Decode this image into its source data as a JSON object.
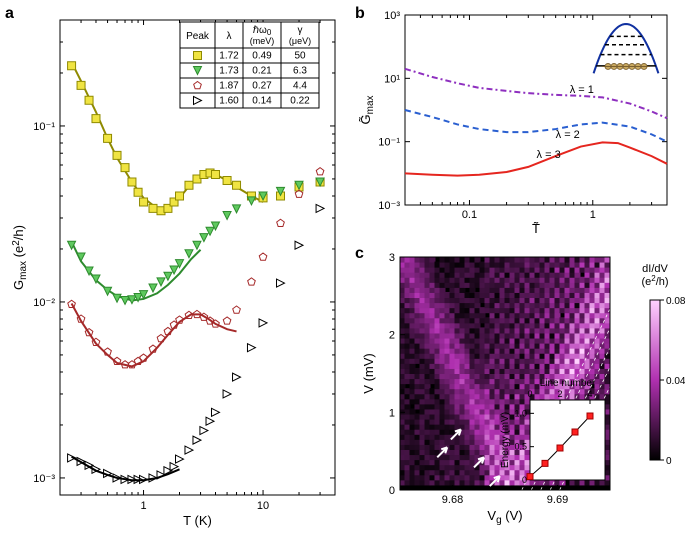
{
  "panel_a": {
    "label": "a",
    "type": "scatter-log-log",
    "xlabel": "T (K)",
    "ylabel": "G_max (e²/h)",
    "xlim": [
      0.2,
      40
    ],
    "ylim": [
      0.0008,
      0.4
    ],
    "xticks": [
      1,
      10
    ],
    "yticks": [
      0.001,
      0.01,
      0.1
    ],
    "xtick_labels": [
      "1",
      "10"
    ],
    "ytick_labels": [
      "10⁻³",
      "10⁻²",
      "10⁻¹"
    ],
    "background_color": "#ffffff",
    "series": [
      {
        "name": "yellow-squares",
        "marker": "square",
        "fill_color": "#f0e442",
        "line_color": "#8f8a00",
        "data": [
          [
            0.25,
            0.22
          ],
          [
            0.3,
            0.17
          ],
          [
            0.35,
            0.14
          ],
          [
            0.4,
            0.11
          ],
          [
            0.5,
            0.085
          ],
          [
            0.6,
            0.068
          ],
          [
            0.7,
            0.058
          ],
          [
            0.8,
            0.048
          ],
          [
            0.9,
            0.042
          ],
          [
            1.0,
            0.037
          ],
          [
            1.2,
            0.034
          ],
          [
            1.4,
            0.033
          ],
          [
            1.6,
            0.034
          ],
          [
            1.8,
            0.037
          ],
          [
            2.0,
            0.04
          ],
          [
            2.4,
            0.046
          ],
          [
            2.8,
            0.05
          ],
          [
            3.2,
            0.053
          ],
          [
            3.6,
            0.054
          ],
          [
            4.0,
            0.053
          ],
          [
            5.0,
            0.049
          ],
          [
            6.0,
            0.046
          ],
          [
            8.0,
            0.04
          ],
          [
            10,
            0.039
          ],
          [
            14,
            0.04
          ],
          [
            20,
            0.045
          ],
          [
            30,
            0.048
          ]
        ],
        "fit_line": [
          [
            0.25,
            0.23
          ],
          [
            0.3,
            0.18
          ],
          [
            0.4,
            0.12
          ],
          [
            0.5,
            0.085
          ],
          [
            0.6,
            0.066
          ],
          [
            0.8,
            0.048
          ],
          [
            1.0,
            0.039
          ],
          [
            1.3,
            0.034
          ],
          [
            1.6,
            0.034
          ],
          [
            2.0,
            0.039
          ],
          [
            2.5,
            0.047
          ],
          [
            3.0,
            0.052
          ],
          [
            3.5,
            0.054
          ],
          [
            4.0,
            0.053
          ],
          [
            5.0,
            0.049
          ],
          [
            6.0,
            0.045
          ],
          [
            8.0,
            0.04
          ],
          [
            10,
            0.037
          ]
        ]
      },
      {
        "name": "green-triangles",
        "marker": "triangle-down",
        "fill_color": "#5fc95f",
        "line_color": "#2e8b2e",
        "data": [
          [
            0.25,
            0.021
          ],
          [
            0.3,
            0.018
          ],
          [
            0.35,
            0.015
          ],
          [
            0.4,
            0.0135
          ],
          [
            0.5,
            0.0115
          ],
          [
            0.6,
            0.0105
          ],
          [
            0.7,
            0.0102
          ],
          [
            0.8,
            0.0103
          ],
          [
            0.9,
            0.0106
          ],
          [
            1.0,
            0.011
          ],
          [
            1.2,
            0.012
          ],
          [
            1.4,
            0.013
          ],
          [
            1.6,
            0.014
          ],
          [
            1.8,
            0.0152
          ],
          [
            2.0,
            0.0165
          ],
          [
            2.4,
            0.0188
          ],
          [
            2.8,
            0.021
          ],
          [
            3.2,
            0.0232
          ],
          [
            3.6,
            0.0252
          ],
          [
            4.0,
            0.027
          ],
          [
            5.0,
            0.031
          ],
          [
            6.0,
            0.0338
          ],
          [
            8.0,
            0.0375
          ],
          [
            10,
            0.04
          ],
          [
            14,
            0.0425
          ],
          [
            20,
            0.046
          ],
          [
            30,
            0.048
          ]
        ],
        "fit_line": [
          [
            0.25,
            0.022
          ],
          [
            0.3,
            0.017
          ],
          [
            0.4,
            0.0133
          ],
          [
            0.5,
            0.0117
          ],
          [
            0.6,
            0.0108
          ],
          [
            0.8,
            0.0102
          ],
          [
            1.0,
            0.0104
          ],
          [
            1.3,
            0.0112
          ],
          [
            1.6,
            0.0125
          ],
          [
            2.0,
            0.0145
          ],
          [
            2.5,
            0.0175
          ],
          [
            3.0,
            0.0198
          ]
        ]
      },
      {
        "name": "red-pentagons",
        "marker": "pentagon",
        "fill_color": "none",
        "line_color": "#a52929",
        "data": [
          [
            0.25,
            0.0097
          ],
          [
            0.3,
            0.008
          ],
          [
            0.35,
            0.0067
          ],
          [
            0.4,
            0.0059
          ],
          [
            0.5,
            0.0052
          ],
          [
            0.6,
            0.0046
          ],
          [
            0.7,
            0.0044
          ],
          [
            0.8,
            0.0044
          ],
          [
            0.9,
            0.0046
          ],
          [
            1.0,
            0.0048
          ],
          [
            1.2,
            0.0054
          ],
          [
            1.4,
            0.0062
          ],
          [
            1.6,
            0.0068
          ],
          [
            1.8,
            0.0074
          ],
          [
            2.0,
            0.0079
          ],
          [
            2.4,
            0.0084
          ],
          [
            2.8,
            0.0085
          ],
          [
            3.2,
            0.0082
          ],
          [
            3.6,
            0.0078
          ],
          [
            4.0,
            0.0075
          ],
          [
            5.0,
            0.0078
          ],
          [
            6.0,
            0.009
          ],
          [
            8.0,
            0.013
          ],
          [
            10,
            0.018
          ],
          [
            14,
            0.028
          ],
          [
            20,
            0.041
          ],
          [
            30,
            0.055
          ]
        ],
        "fit_line": [
          [
            0.25,
            0.0098
          ],
          [
            0.3,
            0.0078
          ],
          [
            0.4,
            0.0058
          ],
          [
            0.5,
            0.005
          ],
          [
            0.6,
            0.0045
          ],
          [
            0.8,
            0.0043
          ],
          [
            1.0,
            0.0046
          ],
          [
            1.3,
            0.0055
          ],
          [
            1.6,
            0.0065
          ],
          [
            2.0,
            0.0077
          ],
          [
            2.5,
            0.0085
          ],
          [
            3.0,
            0.0085
          ],
          [
            3.5,
            0.008
          ],
          [
            4.0,
            0.0075
          ],
          [
            5.0,
            0.007
          ],
          [
            6.0,
            0.0068
          ]
        ]
      },
      {
        "name": "black-triangles",
        "marker": "triangle-right",
        "fill_color": "none",
        "line_color": "#000000",
        "data": [
          [
            0.25,
            0.0013
          ],
          [
            0.3,
            0.00124
          ],
          [
            0.35,
            0.00118
          ],
          [
            0.4,
            0.00112
          ],
          [
            0.5,
            0.00106
          ],
          [
            0.6,
            0.001
          ],
          [
            0.7,
            0.00098
          ],
          [
            0.8,
            0.00098
          ],
          [
            0.9,
            0.00098
          ],
          [
            1.0,
            0.00098
          ],
          [
            1.2,
            0.001
          ],
          [
            1.4,
            0.00104
          ],
          [
            1.6,
            0.0011
          ],
          [
            1.8,
            0.00116
          ],
          [
            2.0,
            0.00128
          ],
          [
            2.4,
            0.00144
          ],
          [
            2.8,
            0.00164
          ],
          [
            3.2,
            0.00186
          ],
          [
            3.6,
            0.0021
          ],
          [
            4.0,
            0.00236
          ],
          [
            5.0,
            0.003
          ],
          [
            6.0,
            0.00374
          ],
          [
            8.0,
            0.0055
          ],
          [
            10,
            0.0076
          ],
          [
            14,
            0.0128
          ],
          [
            20,
            0.021
          ],
          [
            30,
            0.034
          ]
        ],
        "fit_line": [
          [
            0.25,
            0.00132
          ],
          [
            0.3,
            0.00123
          ],
          [
            0.4,
            0.0011
          ],
          [
            0.5,
            0.00104
          ],
          [
            0.6,
            0.001
          ],
          [
            0.8,
            0.00097
          ],
          [
            1.0,
            0.00097
          ],
          [
            1.3,
            0.001
          ],
          [
            1.6,
            0.00105
          ],
          [
            2.0,
            0.00112
          ]
        ]
      }
    ],
    "table": {
      "headers": [
        "Peak",
        "λ",
        "ℏω₀ (meV)",
        "γ (μeV)"
      ],
      "rows": [
        {
          "marker": "square",
          "fill": "#f0e442",
          "stroke": "#8f8a00",
          "vals": [
            "1.72",
            "0.49",
            "50"
          ]
        },
        {
          "marker": "triangle-down",
          "fill": "#5fc95f",
          "stroke": "#2e8b2e",
          "vals": [
            "1.73",
            "0.21",
            "6.3"
          ]
        },
        {
          "marker": "pentagon",
          "fill": "none",
          "stroke": "#a52929",
          "vals": [
            "1.87",
            "0.27",
            "4.4"
          ]
        },
        {
          "marker": "triangle-right",
          "fill": "none",
          "stroke": "#000000",
          "vals": [
            "1.60",
            "0.14",
            "0.22"
          ]
        }
      ]
    }
  },
  "panel_b": {
    "label": "b",
    "type": "line-log-log",
    "xlabel": "T̃",
    "ylabel": "G̃_max",
    "xlim": [
      0.03,
      4
    ],
    "ylim": [
      0.001,
      1000
    ],
    "xticks": [
      0.1,
      1
    ],
    "yticks": [
      0.001,
      0.1,
      10,
      1000
    ],
    "xtick_labels": [
      "0.1",
      "1"
    ],
    "ytick_labels": [
      "10⁻³",
      "10⁻¹",
      "10¹",
      "10³"
    ],
    "series": [
      {
        "name": "lambda-1",
        "label": "λ = 1",
        "color": "#8e2fbf",
        "dash": "6,3,2,3",
        "data": [
          [
            0.03,
            20
          ],
          [
            0.05,
            11
          ],
          [
            0.08,
            7
          ],
          [
            0.12,
            5
          ],
          [
            0.2,
            4
          ],
          [
            0.3,
            3.4
          ],
          [
            0.5,
            3
          ],
          [
            0.8,
            2.8
          ],
          [
            1.2,
            2.5
          ],
          [
            2,
            1.6
          ],
          [
            3,
            0.9
          ],
          [
            4,
            0.55
          ]
        ]
      },
      {
        "name": "lambda-2",
        "label": "λ = 2",
        "color": "#2a5fd0",
        "dash": "6,4",
        "data": [
          [
            0.03,
            1.0
          ],
          [
            0.05,
            0.6
          ],
          [
            0.08,
            0.35
          ],
          [
            0.12,
            0.25
          ],
          [
            0.2,
            0.2
          ],
          [
            0.3,
            0.2
          ],
          [
            0.5,
            0.25
          ],
          [
            0.8,
            0.35
          ],
          [
            1.2,
            0.4
          ],
          [
            2,
            0.3
          ],
          [
            3,
            0.17
          ],
          [
            4,
            0.1
          ]
        ]
      },
      {
        "name": "lambda-3",
        "label": "λ = 3",
        "color": "#e5261f",
        "dash": "none",
        "data": [
          [
            0.03,
            0.01
          ],
          [
            0.05,
            0.009
          ],
          [
            0.08,
            0.0085
          ],
          [
            0.12,
            0.009
          ],
          [
            0.2,
            0.011
          ],
          [
            0.3,
            0.016
          ],
          [
            0.5,
            0.035
          ],
          [
            0.8,
            0.07
          ],
          [
            1.2,
            0.095
          ],
          [
            1.6,
            0.09
          ],
          [
            2,
            0.065
          ],
          [
            3,
            0.035
          ],
          [
            4,
            0.02
          ]
        ]
      }
    ],
    "lambda_labels": {
      "1": "λ = 1",
      "2": "λ = 2",
      "3": "λ = 3"
    }
  },
  "panel_c": {
    "label": "c",
    "type": "heatmap",
    "xlabel": "V_g (V)",
    "ylabel": "V (mV)",
    "colorbar_label": "dI/dV (e²/h)",
    "xlim": [
      9.675,
      9.695
    ],
    "ylim": [
      0,
      3
    ],
    "xticks": [
      9.68,
      9.69
    ],
    "yticks": [
      0,
      1,
      2,
      3
    ],
    "xtick_labels": [
      "9.68",
      "9.69"
    ],
    "ytick_labels": [
      "0",
      "1",
      "2",
      "3"
    ],
    "cmap_low": "#000000",
    "cmap_high": "#ffd0ff",
    "cmap_mid": "#b030b0",
    "colorbar_ticks": [
      0,
      0.04,
      0.08
    ],
    "colorbar_labels": [
      "0",
      "0.04",
      "0.08"
    ],
    "inset": {
      "xlabel": "Line number",
      "ylabel": "Energy (mV)",
      "xlim": [
        0,
        5
      ],
      "ylim": [
        0,
        1.2
      ],
      "xticks": [
        0,
        2,
        4
      ],
      "yticks": [
        0,
        0.5,
        1.0
      ],
      "xtick_labels": [
        "0",
        "2",
        "4"
      ],
      "ytick_labels": [
        "0",
        "0.5",
        "1.0"
      ],
      "marker_color": "#ff2020",
      "line_color": "#000000",
      "data": [
        [
          0,
          0.05
        ],
        [
          1,
          0.25
        ],
        [
          2,
          0.48
        ],
        [
          3,
          0.72
        ],
        [
          4,
          0.96
        ]
      ]
    }
  }
}
